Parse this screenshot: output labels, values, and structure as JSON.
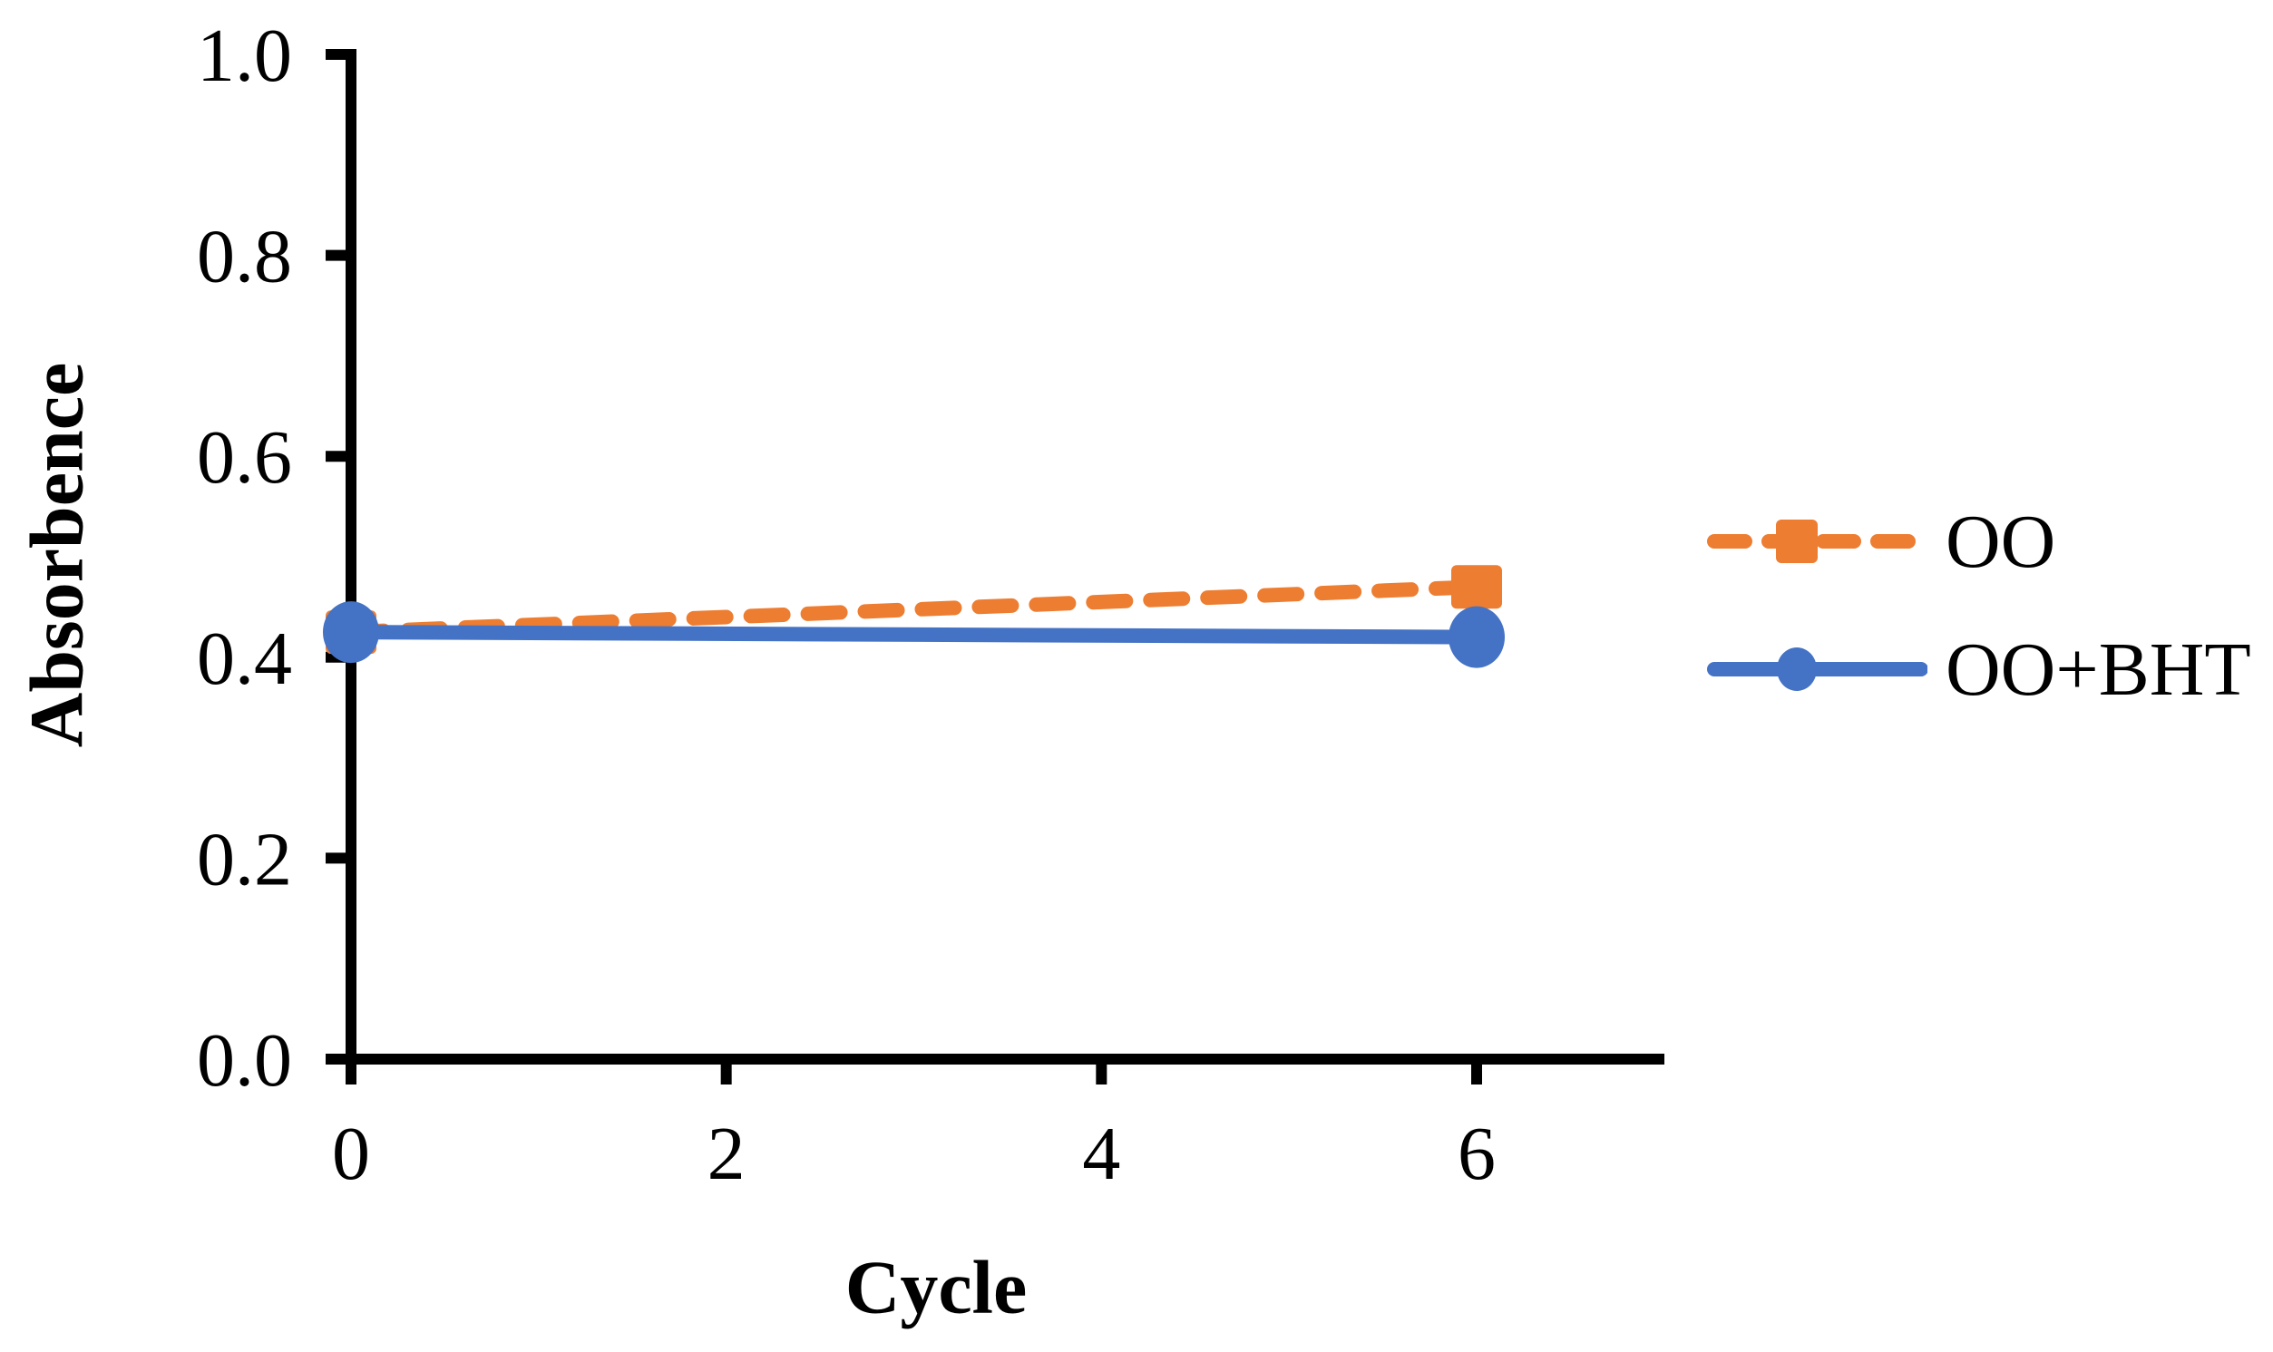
{
  "figure": {
    "background": "#ffffff",
    "axis_color": "#000000",
    "text_color": "#000000"
  },
  "chart_data": {
    "type": "line",
    "title": "",
    "xlabel": "Cycle",
    "ylabel": "Absorbence",
    "x": [
      0,
      6
    ],
    "series": [
      {
        "name": "OO",
        "values": [
          0.425,
          0.47
        ],
        "color": "#ED7D31",
        "line_style": "dashed",
        "marker": "square"
      },
      {
        "name": "OO+BHT",
        "values": [
          0.425,
          0.42
        ],
        "color": "#4472C4",
        "line_style": "solid",
        "marker": "circle"
      }
    ],
    "xlim": [
      0,
      7
    ],
    "ylim": [
      0.0,
      1.0
    ],
    "xticks": [
      0,
      2,
      4,
      6
    ],
    "xtick_labels": [
      "0",
      "2",
      "4",
      "6"
    ],
    "yticks": [
      0.0,
      0.2,
      0.4,
      0.6,
      0.8,
      1.0
    ],
    "ytick_labels": [
      "0.0",
      "0.2",
      "0.4",
      "0.6",
      "0.8",
      "1.0"
    ],
    "grid": false,
    "legend_position": "right-of-plot"
  }
}
